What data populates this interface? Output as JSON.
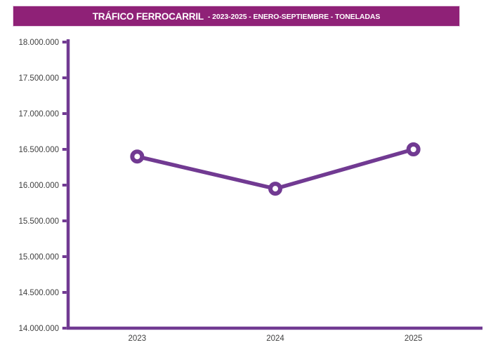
{
  "header": {
    "title_main": "TRÁFICO FERROCARRIL",
    "title_sub": "- 2023-2025 - ENERO-SEPTIEMBRE - TONELADAS",
    "bg_color": "#8F2177",
    "border_color": "#E7D2E3",
    "text_color": "#FFFFFF"
  },
  "chart_data": {
    "type": "line",
    "title": "TRÁFICO FERROCARRIL - 2023-2025 - ENERO-SEPTIEMBRE - TONELADAS",
    "categories": [
      "2023",
      "2024",
      "2025"
    ],
    "series": [
      {
        "name": "Toneladas",
        "values": [
          16400000,
          15950000,
          16500000
        ]
      }
    ],
    "ylim": [
      14000000,
      18000000
    ],
    "y_tick_step": 500000,
    "y_tick_labels": [
      "14.000.000",
      "14.500.000",
      "15.000.000",
      "15.500.000",
      "16.000.000",
      "16.500.000",
      "17.000.000",
      "17.500.000",
      "18.000.000"
    ],
    "xlabel": "",
    "ylabel": "",
    "grid": false,
    "legend": false,
    "marker": "open-circle",
    "line_color": "#713A92",
    "axis_color": "#713A92",
    "tick_text_color": "#3F3F3F"
  }
}
